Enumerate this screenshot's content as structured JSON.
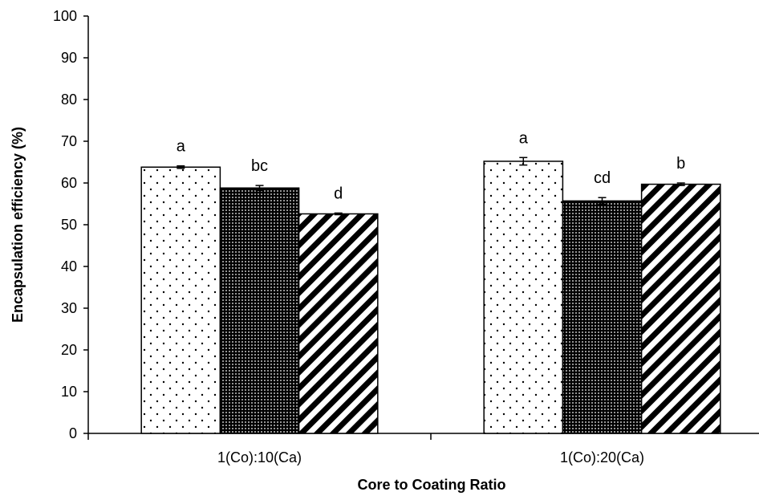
{
  "chart_data": {
    "type": "bar",
    "title": "",
    "xlabel": "Core to Coating Ratio",
    "ylabel": "Encapsulation efficiency (%)",
    "ylim": [
      0,
      100
    ],
    "yticks": [
      0,
      10,
      20,
      30,
      40,
      50,
      60,
      70,
      80,
      90,
      100
    ],
    "grid": false,
    "legend": "none",
    "categories": [
      "1(Co):10(Ca)",
      "1(Co):20(Ca)"
    ],
    "series": [
      {
        "pattern": "sparse-dots",
        "values": [
          63.8,
          65.2
        ],
        "errors": [
          0.3,
          0.9
        ],
        "labels": [
          "a",
          "a"
        ]
      },
      {
        "pattern": "dense-dots",
        "values": [
          58.8,
          55.7
        ],
        "errors": [
          0.6,
          0.8
        ],
        "labels": [
          "bc",
          "cd"
        ]
      },
      {
        "pattern": "diagonal-stripes",
        "values": [
          52.6,
          59.7
        ],
        "errors": [
          0.2,
          0.3
        ],
        "labels": [
          "d",
          "b"
        ]
      }
    ]
  }
}
